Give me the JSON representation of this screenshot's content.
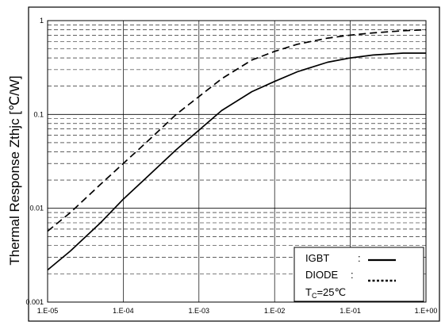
{
  "chart_data": {
    "type": "line",
    "ylabel": "Thermal Response Zthjc [℃/W]",
    "xlabel": "",
    "title": "",
    "xscale": "log",
    "yscale": "log",
    "xlim": [
      1e-05,
      1
    ],
    "ylim": [
      0.001,
      1
    ],
    "grid": "major vertical, minor horizontal dashed",
    "x_tick_labels": [
      "1.E-05",
      "1.E-04",
      "1.E-03",
      "1.E-02",
      "1.E-01",
      "1.E+00"
    ],
    "y_tick_labels": [
      "0.001",
      "0.01",
      "0.1",
      "1"
    ],
    "series": [
      {
        "name": "IGBT",
        "line_style": "solid",
        "x": [
          1e-05,
          2e-05,
          5e-05,
          0.0001,
          0.0002,
          0.0005,
          0.001,
          0.002,
          0.005,
          0.01,
          0.02,
          0.05,
          0.1,
          0.2,
          0.5,
          1
        ],
        "y": [
          0.0022,
          0.0035,
          0.007,
          0.0125,
          0.021,
          0.042,
          0.068,
          0.11,
          0.175,
          0.225,
          0.285,
          0.36,
          0.4,
          0.43,
          0.45,
          0.45
        ]
      },
      {
        "name": "DIODE",
        "line_style": "dashed",
        "x": [
          1e-05,
          2e-05,
          5e-05,
          0.0001,
          0.0002,
          0.0005,
          0.001,
          0.002,
          0.005,
          0.01,
          0.02,
          0.05,
          0.1,
          0.2,
          0.5,
          1
        ],
        "y": [
          0.0057,
          0.009,
          0.018,
          0.03,
          0.05,
          0.1,
          0.155,
          0.24,
          0.38,
          0.47,
          0.56,
          0.65,
          0.7,
          0.74,
          0.78,
          0.8
        ]
      }
    ],
    "legend": {
      "placement": "bottom-right",
      "entries": [
        {
          "label": "IGBT",
          "sep": ":"
        },
        {
          "label": "DIODE",
          "sep": ":"
        }
      ],
      "condition_prefix": "T",
      "condition_sub": "C",
      "condition_suffix": "=25℃"
    }
  }
}
